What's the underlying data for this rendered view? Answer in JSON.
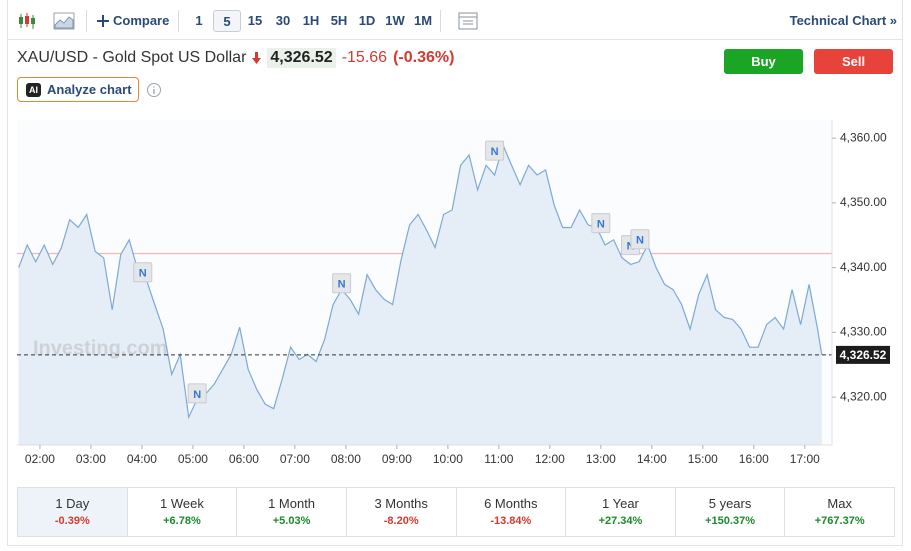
{
  "toolbar": {
    "compare": "Compare",
    "timeframes": [
      "1",
      "5",
      "15",
      "30",
      "1H",
      "5H",
      "1D",
      "1W",
      "1M"
    ],
    "selected_timeframe": "5",
    "technical_chart": "Technical Chart »"
  },
  "header": {
    "title": "XAU/USD - Gold Spot US Dollar",
    "price": "4,326.52",
    "change": "-15.66",
    "change_percent": "(-0.36%)",
    "buy": "Buy",
    "sell": "Sell",
    "analyze_badge": "AI",
    "analyze": "Analyze chart"
  },
  "chart_data": {
    "type": "line",
    "watermark": "Investing.com",
    "color": "#7ea9d6",
    "fill": "#e5edf6",
    "x": [
      "01:35",
      "01:45",
      "01:55",
      "02:05",
      "02:15",
      "02:25",
      "02:35",
      "02:45",
      "02:55",
      "03:05",
      "03:15",
      "03:25",
      "03:35",
      "03:45",
      "03:55",
      "04:05",
      "04:15",
      "04:25",
      "04:35",
      "04:45",
      "04:55",
      "05:05",
      "05:15",
      "05:25",
      "05:35",
      "05:45",
      "05:55",
      "06:05",
      "06:15",
      "06:25",
      "06:35",
      "06:45",
      "06:55",
      "07:05",
      "07:15",
      "07:25",
      "07:35",
      "07:45",
      "07:55",
      "08:05",
      "08:15",
      "08:25",
      "08:35",
      "08:45",
      "08:55",
      "09:05",
      "09:15",
      "09:25",
      "09:35",
      "09:45",
      "09:55",
      "10:05",
      "10:15",
      "10:25",
      "10:35",
      "10:45",
      "10:55",
      "11:05",
      "11:15",
      "11:25",
      "11:35",
      "11:45",
      "11:55",
      "12:05",
      "12:15",
      "12:25",
      "12:35",
      "12:45",
      "12:55",
      "13:05",
      "13:15",
      "13:25",
      "13:35",
      "13:45",
      "13:55",
      "14:05",
      "14:15",
      "14:25",
      "14:35",
      "14:45",
      "14:55",
      "15:05",
      "15:15",
      "15:25",
      "15:35",
      "15:45",
      "15:55",
      "16:05",
      "16:15",
      "16:25",
      "16:35",
      "16:45",
      "16:55",
      "17:05",
      "17:15",
      "17:20"
    ],
    "values": [
      4340.0,
      4343.5,
      4340.9,
      4343.5,
      4340.5,
      4343.0,
      4347.4,
      4346.2,
      4348.2,
      4342.5,
      4341.5,
      4333.5,
      4342.0,
      4344.3,
      4339.7,
      4338.2,
      4334.3,
      4330.5,
      4323.5,
      4326.6,
      4316.9,
      4319.7,
      4320.5,
      4322.0,
      4324.3,
      4326.6,
      4330.8,
      4324.3,
      4321.2,
      4318.9,
      4318.2,
      4322.8,
      4327.7,
      4325.8,
      4326.6,
      4325.5,
      4328.9,
      4334.3,
      4336.6,
      4335.1,
      4332.8,
      4338.9,
      4336.6,
      4335.1,
      4334.3,
      4341.2,
      4346.6,
      4348.2,
      4345.8,
      4343.1,
      4348.2,
      4348.9,
      4355.8,
      4357.4,
      4352.0,
      4355.8,
      4354.3,
      4358.9,
      4355.8,
      4352.8,
      4355.8,
      4354.3,
      4355.1,
      4349.7,
      4346.2,
      4346.2,
      4348.9,
      4346.6,
      4346.2,
      4343.5,
      4344.3,
      4341.5,
      4340.5,
      4340.9,
      4343.5,
      4340.0,
      4337.4,
      4336.6,
      4334.3,
      4330.5,
      4335.8,
      4338.9,
      4333.5,
      4332.3,
      4332.0,
      4330.5,
      4327.7,
      4327.7,
      4331.2,
      4332.3,
      4330.5,
      4336.6,
      4331.2,
      4337.4,
      4330.5,
      4326.52
    ],
    "xlim": [
      "01:33",
      "17:32"
    ],
    "xticks": [
      "02:00",
      "03:00",
      "04:00",
      "05:00",
      "06:00",
      "07:00",
      "08:00",
      "09:00",
      "10:00",
      "11:00",
      "12:00",
      "13:00",
      "14:00",
      "15:00",
      "16:00",
      "17:00"
    ],
    "ylim": [
      4312.6,
      4362.8
    ],
    "yticks": [
      {
        "value": 4320,
        "label": "4,320.00"
      },
      {
        "value": 4330,
        "label": "4,330.00"
      },
      {
        "value": 4340,
        "label": "4,340.00"
      },
      {
        "value": 4350,
        "label": "4,350.00"
      },
      {
        "value": 4360,
        "label": "4,360.00"
      }
    ],
    "last_price": {
      "value": 4326.52,
      "label": "4,326.52"
    },
    "reference_line": {
      "value": 4342.18,
      "color": "#f2b6b3"
    },
    "annotations": [
      {
        "x": "04:01",
        "y": 4339.2,
        "label": "N"
      },
      {
        "x": "05:05",
        "y": 4320.5,
        "label": "N"
      },
      {
        "x": "07:55",
        "y": 4337.5,
        "label": "N"
      },
      {
        "x": "10:55",
        "y": 4358.0,
        "label": "N"
      },
      {
        "x": "13:00",
        "y": 4346.8,
        "label": "N"
      },
      {
        "x": "13:35",
        "y": 4343.4,
        "label": "N"
      },
      {
        "x": "13:46",
        "y": 4344.3,
        "label": "N"
      }
    ]
  },
  "periods": [
    {
      "name": "1 Day",
      "change": "-0.39%"
    },
    {
      "name": "1 Week",
      "change": "+6.78%"
    },
    {
      "name": "1 Month",
      "change": "+5.03%"
    },
    {
      "name": "3 Months",
      "change": "-8.20%"
    },
    {
      "name": "6 Months",
      "change": "-13.84%"
    },
    {
      "name": "1 Year",
      "change": "+27.34%"
    },
    {
      "name": "5 years",
      "change": "+150.37%"
    },
    {
      "name": "Max",
      "change": "+767.37%"
    }
  ]
}
